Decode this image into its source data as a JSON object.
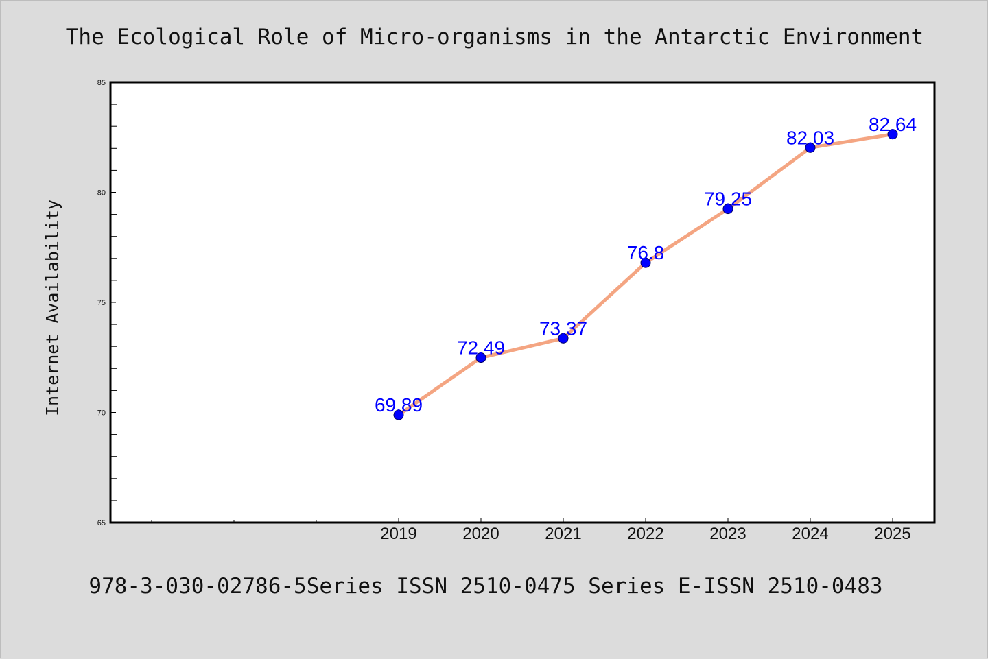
{
  "colors": {
    "background": "#dcdcdc",
    "plot_background": "#ffffff",
    "line": "#f4a582",
    "marker": "#0000ff",
    "data_label": "#0000ff",
    "text": "#111111"
  },
  "chart_data": {
    "type": "line",
    "title": "The Ecological Role of Micro-organisms in the Antarctic Environment",
    "xlabel": "",
    "ylabel": "Internet Availability",
    "footer": "978-3-030-02786-5Series ISSN 2510-0475 Series E-ISSN 2510-0483",
    "categories": [
      "2019",
      "2020",
      "2021",
      "2022",
      "2023",
      "2024",
      "2025"
    ],
    "series": [
      {
        "values": [
          69.89,
          72.49,
          73.37,
          76.8,
          79.25,
          82.03,
          82.64
        ],
        "labels": [
          "69.89",
          "72.49",
          "73.37",
          "76.8",
          "79.25",
          "82.03",
          "82.64"
        ]
      }
    ],
    "ylim": [
      65,
      85
    ],
    "yticks": [
      "65",
      "70",
      "75",
      "80",
      "85"
    ],
    "grid": false,
    "legend": "none"
  }
}
